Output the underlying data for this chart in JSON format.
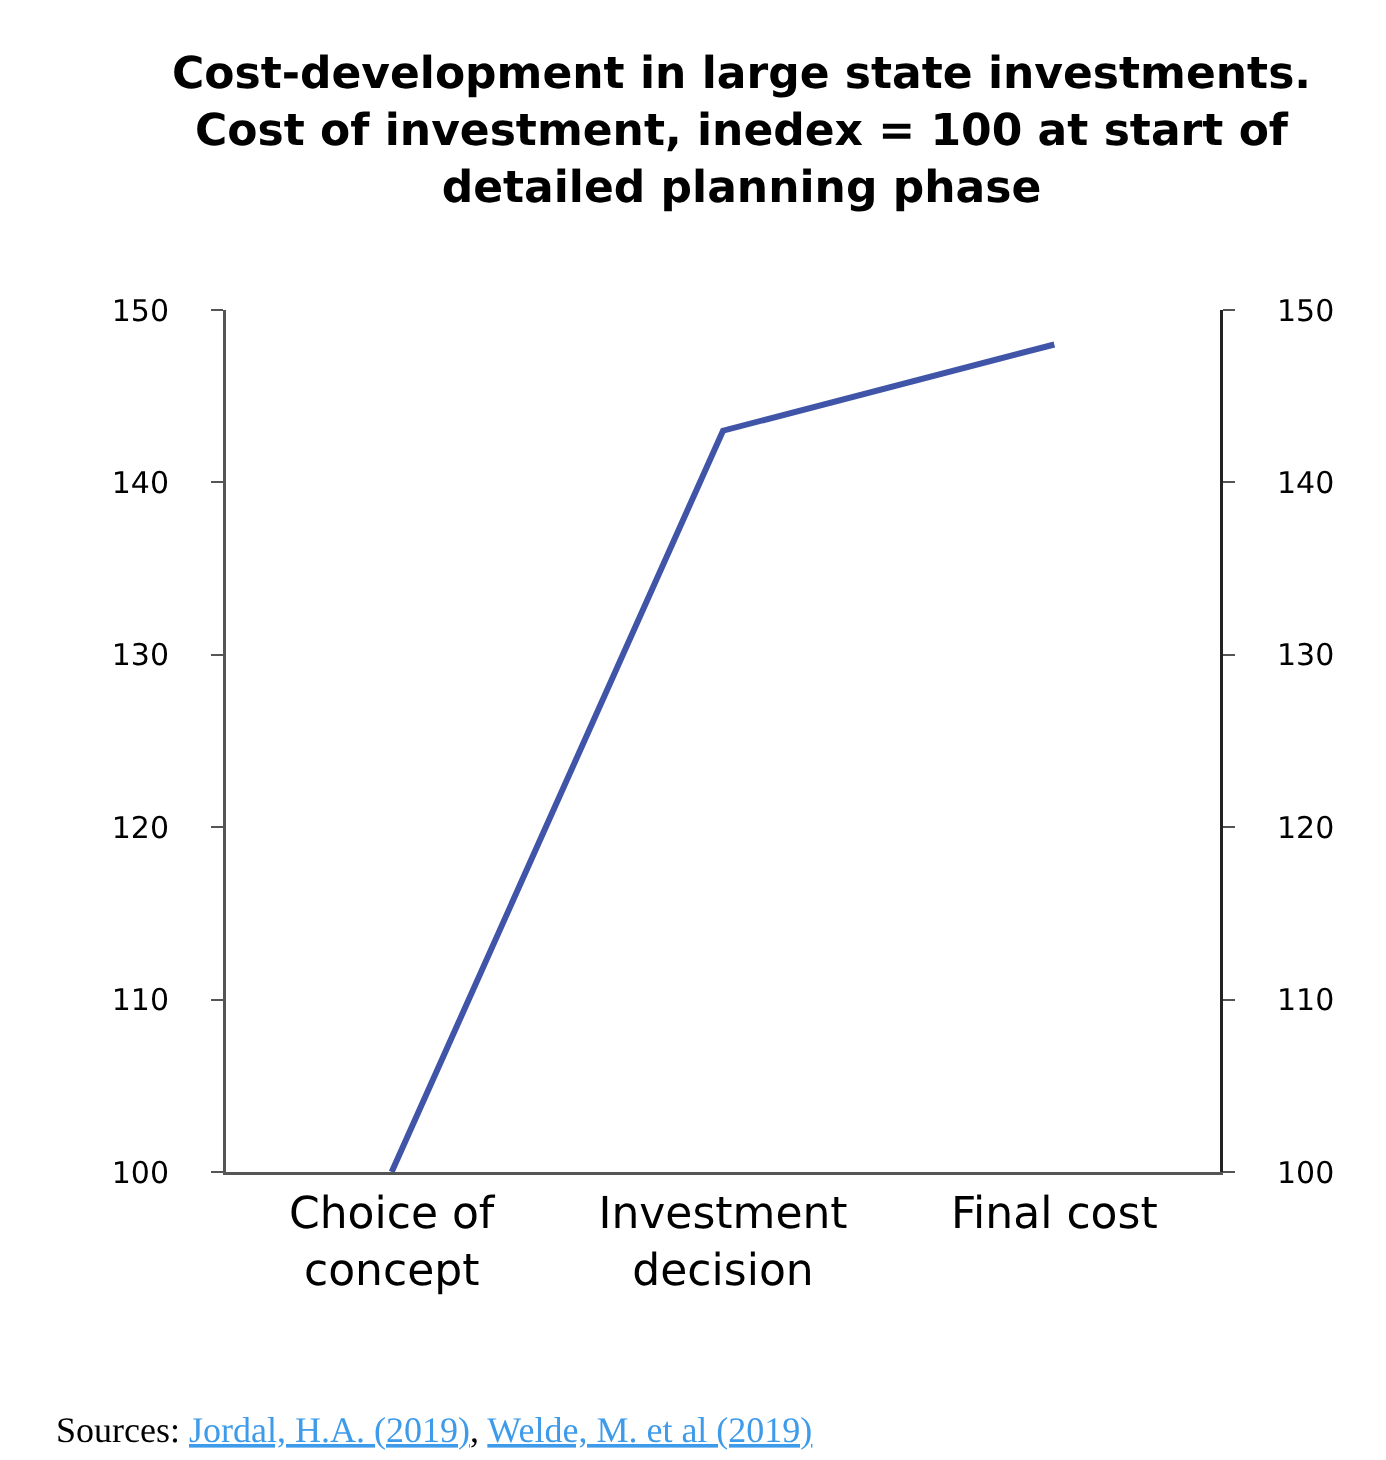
{
  "chart_data": {
    "type": "line",
    "title": "Cost-development in large state investments. Cost of investment, inedex = 100 at start of detailed planning phase",
    "categories": [
      "Choice of concept",
      "Investment decision",
      "Final cost"
    ],
    "series": [
      {
        "color": "#4055a8",
        "values": [
          100,
          143,
          148
        ]
      }
    ],
    "ylim": [
      100,
      150
    ],
    "yticks": [
      100,
      110,
      120,
      130,
      140,
      150
    ],
    "y2lim": [
      100,
      150
    ],
    "y2ticks": [
      100,
      110,
      120,
      130,
      140,
      150
    ],
    "grid": false,
    "marker": "none",
    "line_style": "solid",
    "annotations": [
      "Sources: Jordal, H.A. (2019), Welde, M. et al (2019)"
    ]
  }
}
